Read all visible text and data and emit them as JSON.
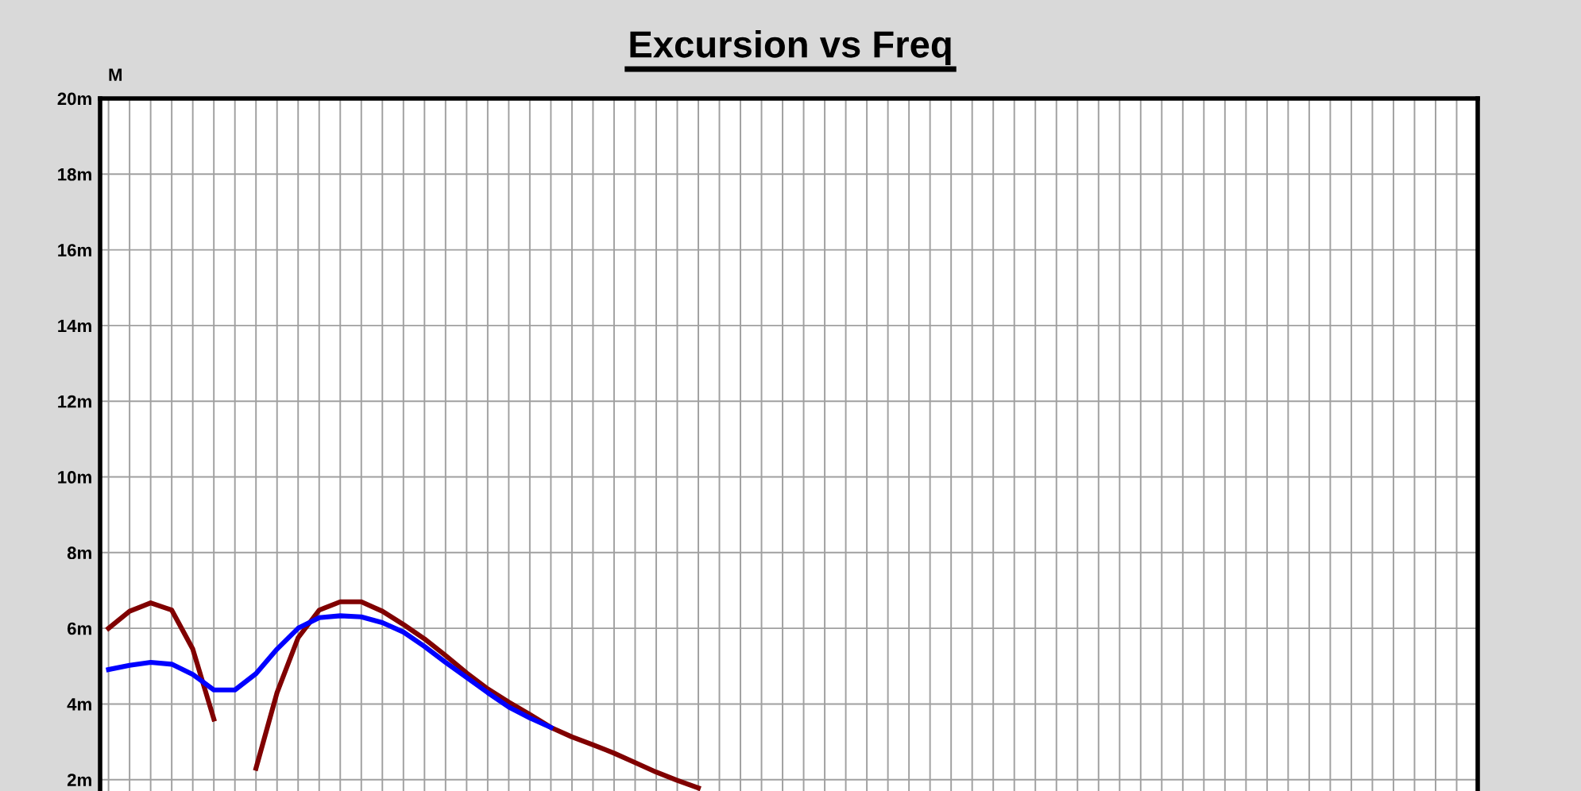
{
  "chart_data": {
    "type": "line",
    "title": "Excursion vs Freq",
    "ylabel": "M",
    "categories": [
      null,
      null,
      null,
      null,
      null,
      null,
      null,
      null,
      null,
      null,
      null,
      null,
      null,
      null,
      null,
      null,
      null,
      null,
      null,
      null,
      null,
      null,
      null,
      null,
      null,
      null,
      null,
      null,
      null,
      null,
      null,
      null,
      null,
      null,
      null,
      null,
      null,
      null,
      null,
      null,
      null,
      null,
      null,
      null,
      null,
      null,
      null,
      null,
      null,
      null,
      null,
      null,
      null,
      null,
      null,
      null,
      null,
      null,
      null,
      null,
      null,
      null,
      null,
      null,
      null,
      null
    ],
    "series": [
      {
        "color": "#800000",
        "values": [
          6.0,
          6.45,
          6.67,
          6.48,
          5.45,
          3.6,
          null,
          2.3,
          4.3,
          5.75,
          6.48,
          6.7,
          6.7,
          6.45,
          6.1,
          5.72,
          5.28,
          4.82,
          4.4,
          4.05,
          3.72,
          3.38,
          3.13,
          2.92,
          2.7,
          2.45,
          2.2,
          1.98,
          1.78,
          null,
          null,
          null,
          null,
          null,
          null,
          null,
          null,
          null,
          null,
          null,
          null,
          null,
          null,
          null,
          null,
          null,
          null,
          null,
          null,
          null,
          null,
          null,
          null,
          null,
          null,
          null,
          null,
          null,
          null,
          null,
          null,
          null,
          null,
          null,
          null,
          null
        ]
      },
      {
        "color": "#0000ff",
        "values": [
          4.91,
          5.02,
          5.1,
          5.05,
          4.78,
          4.37,
          4.37,
          4.8,
          5.45,
          6.0,
          6.28,
          6.33,
          6.3,
          6.15,
          5.9,
          5.52,
          5.1,
          4.7,
          4.3,
          3.92,
          3.63,
          3.38,
          null,
          null,
          null,
          null,
          null,
          null,
          null,
          null,
          null,
          null,
          null,
          null,
          null,
          null,
          null,
          null,
          null,
          null,
          null,
          null,
          null,
          null,
          null,
          null,
          null,
          null,
          null,
          null,
          null,
          null,
          null,
          null,
          null,
          null,
          null,
          null,
          null,
          null,
          null,
          null,
          null,
          null,
          null,
          null
        ]
      }
    ],
    "ylim": [
      1.7,
      20
    ],
    "yticks": [
      {
        "value": 2,
        "label": "2m"
      },
      {
        "value": 4,
        "label": "4m"
      },
      {
        "value": 6,
        "label": "6m"
      },
      {
        "value": 8,
        "label": "8m"
      },
      {
        "value": 10,
        "label": "10m"
      },
      {
        "value": 12,
        "label": "12m"
      },
      {
        "value": 14,
        "label": "14m"
      },
      {
        "value": 16,
        "label": "16m"
      },
      {
        "value": 18,
        "label": "18m"
      },
      {
        "value": 20,
        "label": "20m"
      }
    ],
    "grid": true,
    "tick_labels": "y",
    "line_style": "solid"
  }
}
